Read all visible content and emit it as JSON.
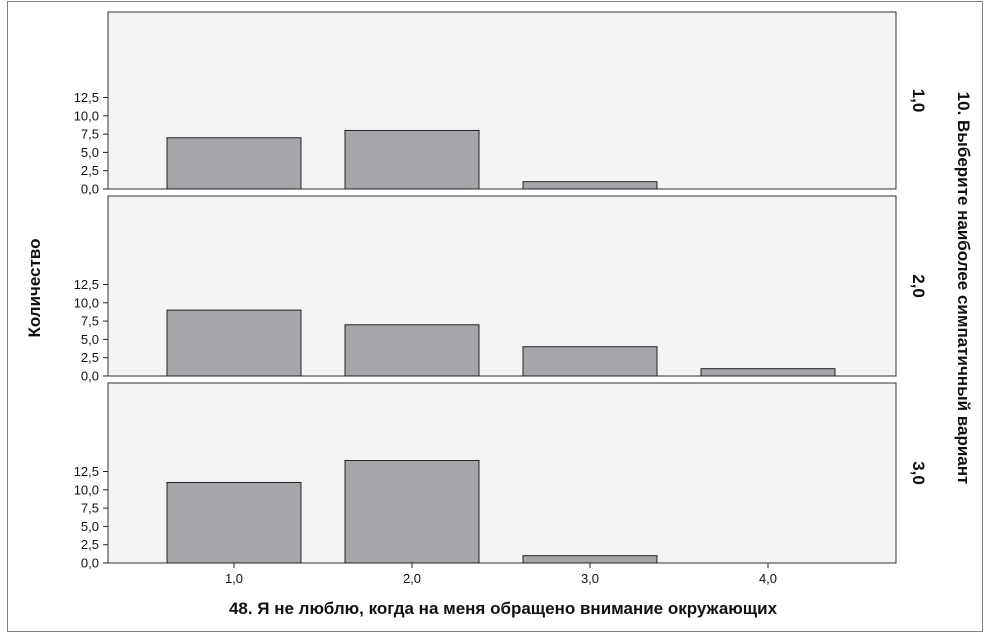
{
  "chart_data": {
    "type": "bar",
    "xlabel": "48. Я не люблю, когда на меня обращено внимание окружающих",
    "ylabel": "Количество",
    "facet_label": "10. Выберите наиболее симпатичный вариант",
    "categories": [
      "1,0",
      "2,0",
      "3,0",
      "4,0"
    ],
    "y_ticks": [
      "0,0",
      "2,5",
      "5,0",
      "7,5",
      "10,0",
      "12,5"
    ],
    "ylim": [
      0,
      15
    ],
    "grid": false,
    "panels": [
      {
        "name": "1,0",
        "values": [
          7,
          8,
          1,
          0
        ]
      },
      {
        "name": "2,0",
        "values": [
          9,
          7,
          4,
          1
        ]
      },
      {
        "name": "3,0",
        "values": [
          11,
          14,
          1,
          0
        ]
      }
    ],
    "colors": {
      "bar": "#a6a6aa",
      "panel": "#f4f4f4",
      "outline": "#222222"
    }
  }
}
